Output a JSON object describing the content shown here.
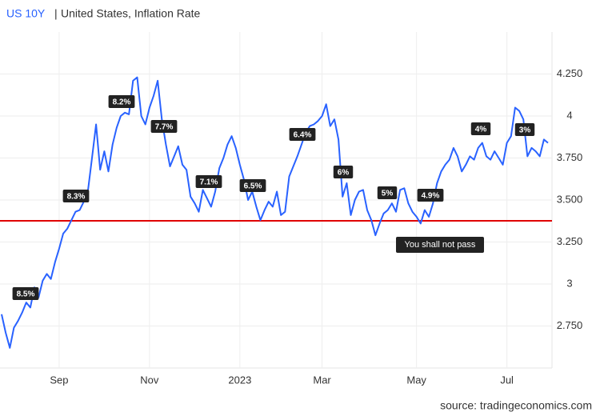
{
  "chart_data": {
    "type": "line",
    "separator": "|",
    "series": [
      {
        "name": "US 10Y",
        "color": "#2962ff",
        "values": [
          2.82,
          2.71,
          2.62,
          2.74,
          2.78,
          2.83,
          2.89,
          2.86,
          2.98,
          2.92,
          3.02,
          3.06,
          3.03,
          3.13,
          3.21,
          3.3,
          3.33,
          3.38,
          3.43,
          3.44,
          3.49,
          3.55,
          3.75,
          3.95,
          3.68,
          3.79,
          3.67,
          3.83,
          3.93,
          4.0,
          4.02,
          4.01,
          4.21,
          4.23,
          4.0,
          3.95,
          4.05,
          4.12,
          4.21,
          3.98,
          3.83,
          3.7,
          3.76,
          3.82,
          3.71,
          3.68,
          3.52,
          3.48,
          3.43,
          3.56,
          3.51,
          3.46,
          3.55,
          3.69,
          3.75,
          3.83,
          3.88,
          3.81,
          3.71,
          3.62,
          3.5,
          3.55,
          3.46,
          3.38,
          3.44,
          3.49,
          3.46,
          3.55,
          3.41,
          3.43,
          3.64,
          3.7,
          3.76,
          3.83,
          3.9,
          3.94,
          3.95,
          3.97,
          4.0,
          4.07,
          3.94,
          3.98,
          3.86,
          3.52,
          3.6,
          3.41,
          3.5,
          3.55,
          3.56,
          3.44,
          3.38,
          3.29,
          3.36,
          3.42,
          3.44,
          3.48,
          3.43,
          3.56,
          3.57,
          3.48,
          3.43,
          3.4,
          3.36,
          3.44,
          3.4,
          3.48,
          3.6,
          3.67,
          3.71,
          3.74,
          3.81,
          3.76,
          3.67,
          3.71,
          3.76,
          3.74,
          3.81,
          3.84,
          3.76,
          3.74,
          3.79,
          3.75,
          3.71,
          3.84,
          3.88,
          4.05,
          4.03,
          3.98,
          3.76,
          3.81,
          3.79,
          3.76,
          3.86,
          3.84
        ]
      },
      {
        "name": "United States, Inflation Rate",
        "labels": [
          "8.5%",
          "8.3%",
          "8.2%",
          "7.7%",
          "7.1%",
          "6.5%",
          "6.4%",
          "6%",
          "5%",
          "4.9%",
          "4%",
          "3%"
        ]
      }
    ],
    "categories": [
      null,
      null,
      null,
      null,
      null,
      null,
      null,
      null,
      null,
      null,
      null,
      null,
      null,
      null,
      "Sep",
      null,
      null,
      null,
      null,
      null,
      null,
      null,
      null,
      null,
      null,
      null,
      null,
      null,
      null,
      null,
      null,
      null,
      null,
      null,
      null,
      null,
      "Nov",
      null,
      null,
      null,
      null,
      null,
      null,
      null,
      null,
      null,
      null,
      null,
      null,
      null,
      null,
      null,
      null,
      null,
      null,
      null,
      null,
      null,
      "2023",
      null,
      null,
      null,
      null,
      null,
      null,
      null,
      null,
      null,
      null,
      null,
      null,
      null,
      null,
      null,
      null,
      null,
      null,
      null,
      "Mar",
      null,
      null,
      null,
      null,
      null,
      null,
      null,
      null,
      null,
      null,
      null,
      null,
      null,
      null,
      null,
      null,
      null,
      null,
      null,
      null,
      null,
      null,
      "May",
      null,
      null,
      null,
      null,
      null,
      null,
      null,
      null,
      null,
      null,
      null,
      null,
      null,
      null,
      null,
      null,
      null,
      null,
      null,
      null,
      null,
      "Jul",
      null,
      null,
      null,
      null,
      null,
      null,
      null,
      null,
      null,
      null
    ],
    "ylim": [
      2.5,
      4.5
    ],
    "yticks": [
      {
        "value": 2.75,
        "label": "2.750"
      },
      3,
      {
        "value": 3.25,
        "label": "3.250"
      },
      {
        "value": 3.5,
        "label": "3.500"
      },
      {
        "value": 3.75,
        "label": "3.750"
      },
      4,
      {
        "value": 4.25,
        "label": "4.250"
      }
    ],
    "grid": true,
    "hline": {
      "value": 3.376,
      "label": "You shall not pass",
      "color": "#e00000"
    },
    "source": "source: tradingeconomics.com"
  }
}
